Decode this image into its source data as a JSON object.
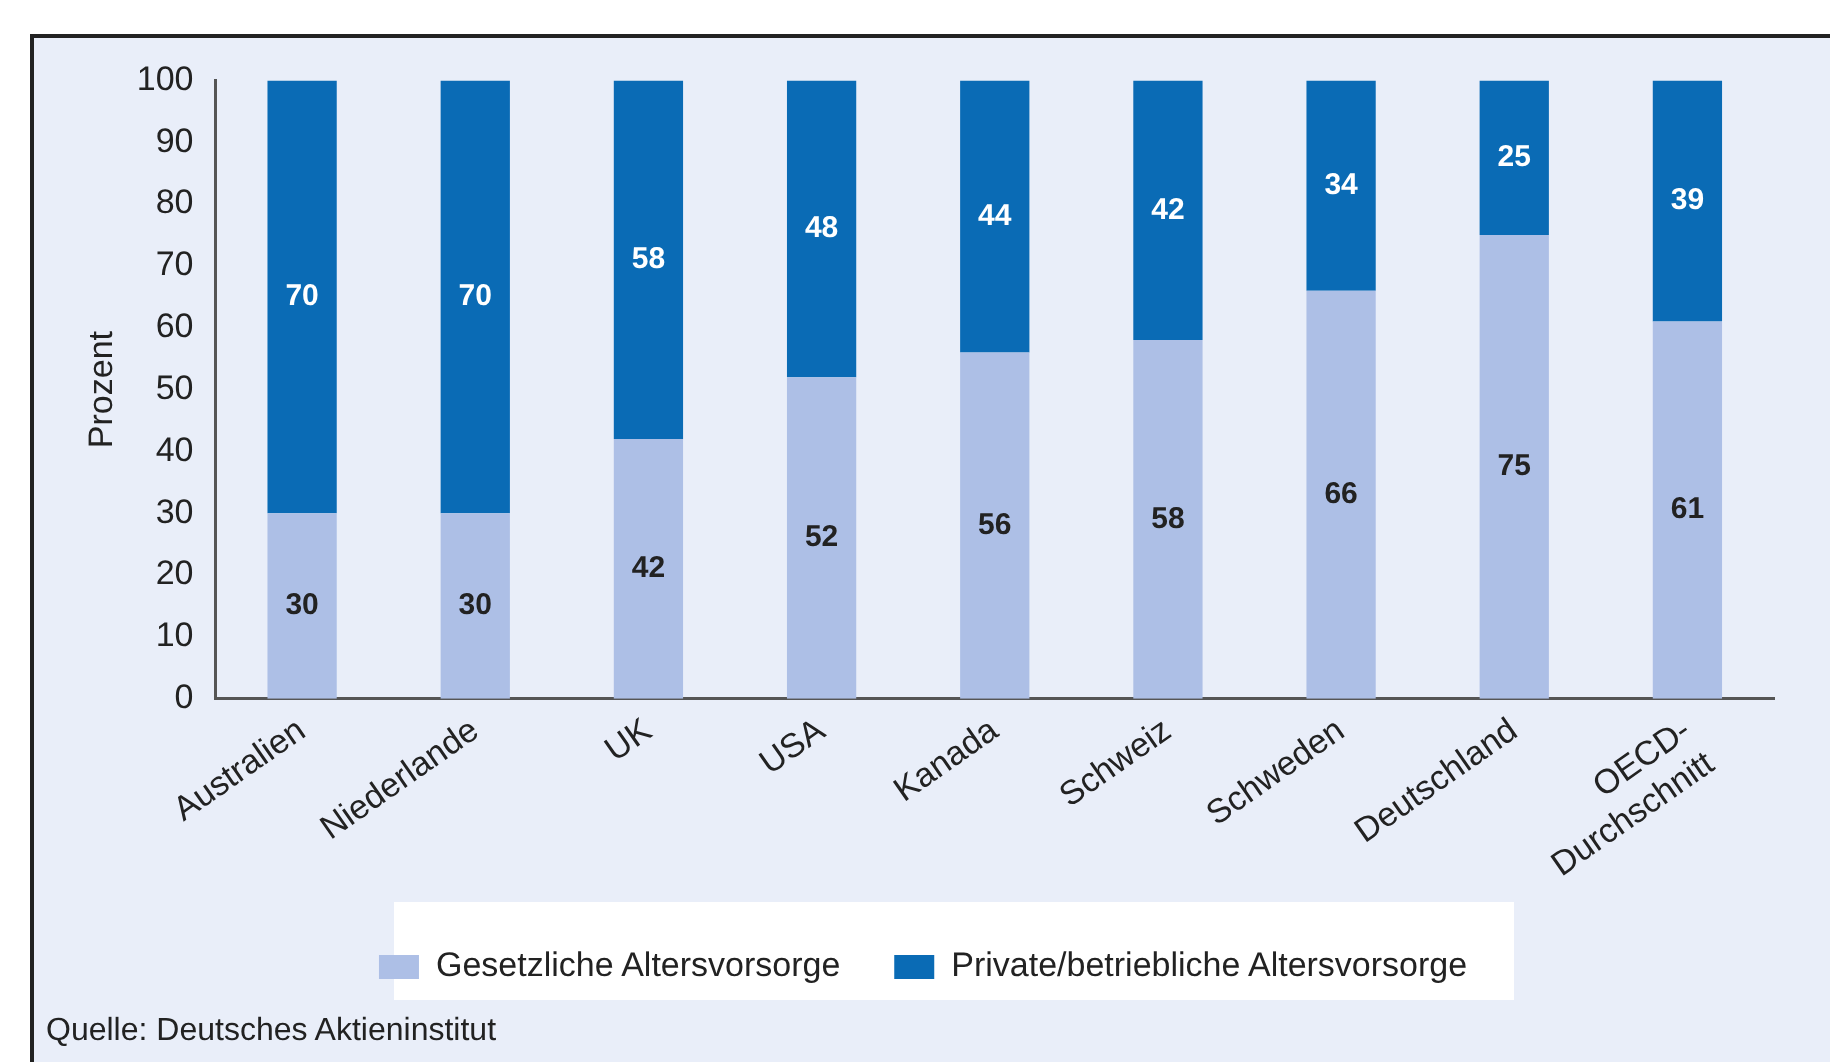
{
  "chart_data": {
    "type": "bar",
    "stacked": true,
    "ylabel": "Prozent",
    "categories": [
      "Australien",
      "Niederlande",
      "UK",
      "USA",
      "Kanada",
      "Schweiz",
      "Schweden",
      "Deutschland",
      "OECD-\nDurchschnitt"
    ],
    "series": [
      {
        "name": "Gesetzliche Altersvorsorge",
        "color": "#adbfe6",
        "values": [
          30,
          30,
          42,
          52,
          56,
          58,
          66,
          75,
          61
        ]
      },
      {
        "name": "Private/betriebliche Altersvorsorge",
        "color": "#0a6bb5",
        "values": [
          70,
          70,
          58,
          48,
          44,
          42,
          34,
          25,
          39
        ]
      }
    ],
    "ylim": [
      0,
      100
    ],
    "yticks": [
      0,
      10,
      20,
      30,
      40,
      50,
      60,
      70,
      80,
      90,
      100
    ],
    "grid": false,
    "legend": "bottom",
    "data_labels": true,
    "annotations": [
      "Quelle: Deutsches Aktieninstitut"
    ]
  }
}
